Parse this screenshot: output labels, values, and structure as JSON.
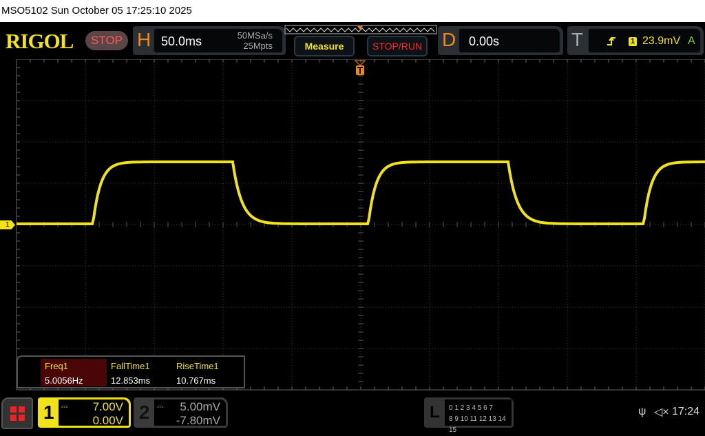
{
  "title_bar": "MSO5102  Sun October 05 17:25:10 2025",
  "brand": "RIGOL",
  "run_state": "STOP",
  "horizontal": {
    "letter": "H",
    "timebase": "50.0ms",
    "sample_rate": "50MSa/s",
    "memory_depth": "25Mpts"
  },
  "buttons": {
    "measure": "Measure",
    "stop_run": "STOP/RUN"
  },
  "delay": {
    "letter": "D",
    "value": "0.00s"
  },
  "trigger": {
    "letter": "T",
    "slope_icon": "rising-edge-icon",
    "source": "1",
    "level": "23.9mV",
    "mode": "A"
  },
  "channel_marker": "1",
  "measurements": [
    {
      "name": "Freq1",
      "value": "5.0056Hz"
    },
    {
      "name": "FallTime1",
      "value": "12.853ms"
    },
    {
      "name": "RiseTime1",
      "value": "10.767ms"
    }
  ],
  "channels": [
    {
      "num": "1",
      "coupling_icon": "dc-coupling-icon",
      "scale": "7.00V",
      "offset": "0.00V",
      "active": true,
      "color": "#f2e21a"
    },
    {
      "num": "2",
      "coupling_icon": "dc-coupling-icon",
      "scale": "5.00mV",
      "offset": "-7.80mV",
      "active": false,
      "color": "#3a3a3a"
    }
  ],
  "logic": {
    "letter": "L",
    "row1": "0 1 2 3  4 5 6 7",
    "row2": "8 9 10 11 12 13 14 15"
  },
  "status": {
    "time": "17:24",
    "usb_icon": "usb-icon",
    "sound_icon": "mute-icon"
  },
  "colors": {
    "trace": "#f2e21a",
    "accent_orange": "#f28a1a",
    "stop_red": "#ff3a3a"
  }
}
